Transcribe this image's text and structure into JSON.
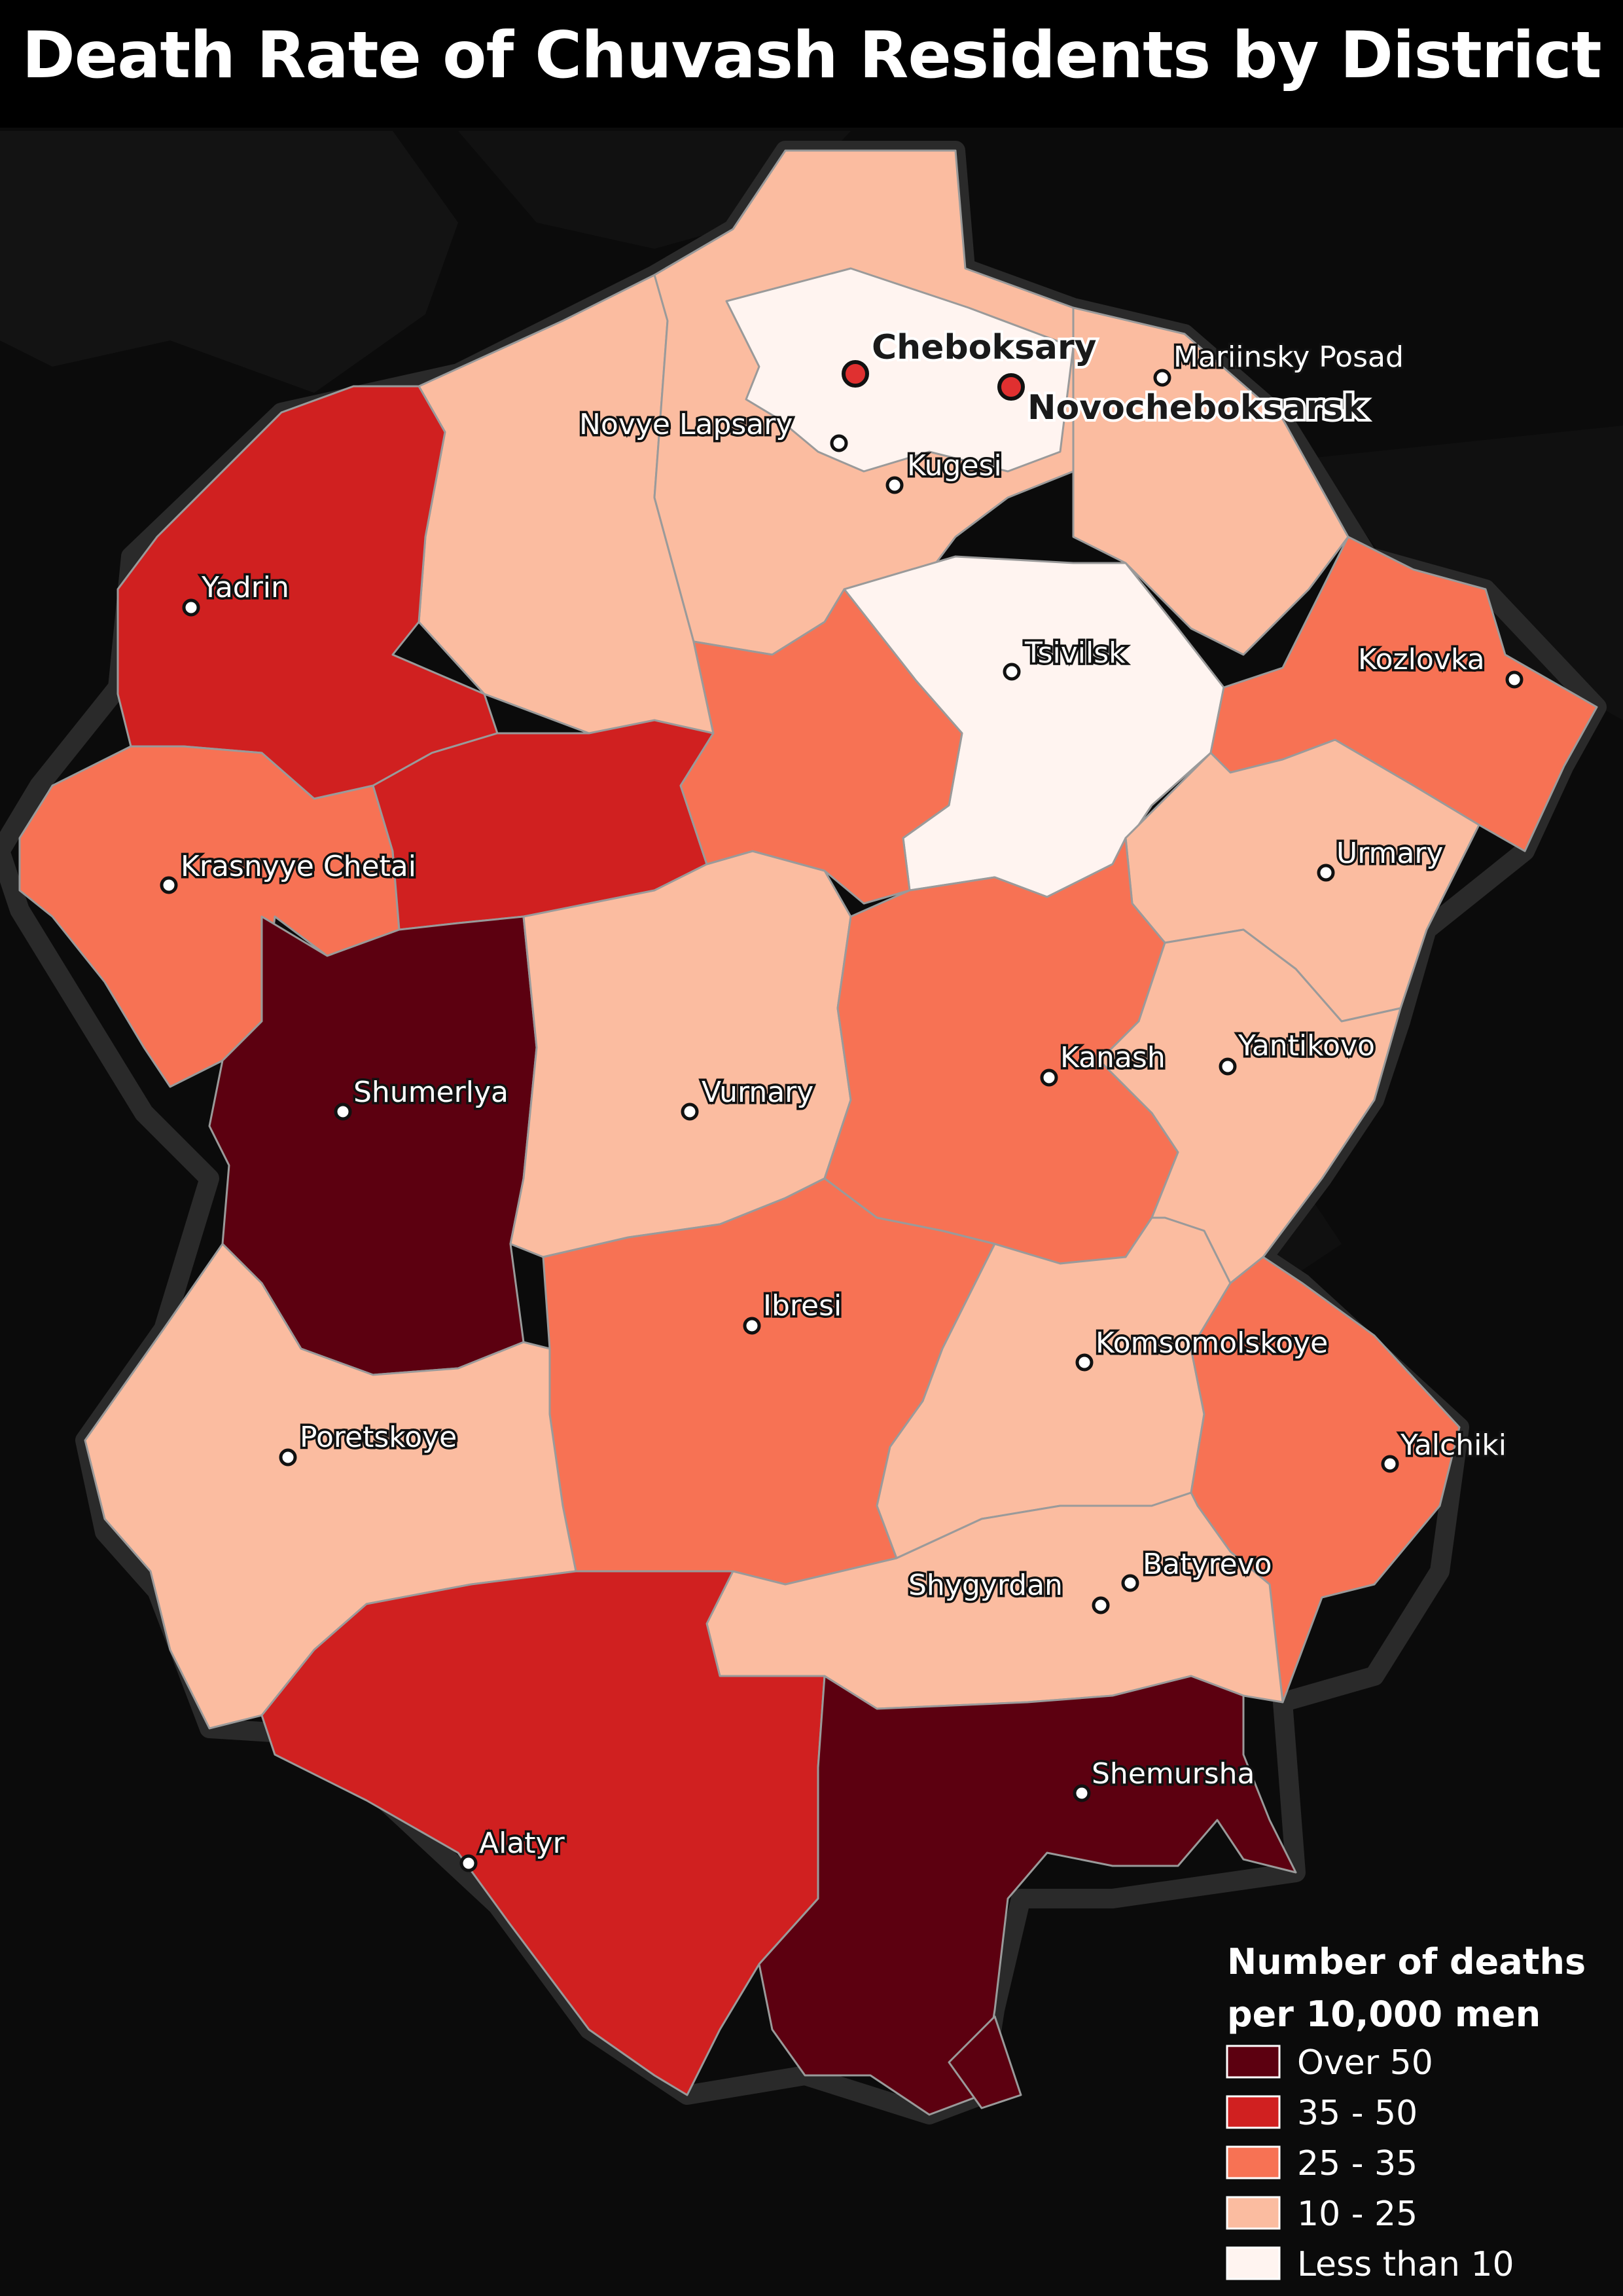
{
  "title": "Death Rate of Chuvash Residents by District",
  "colors": {
    "over_50": "#5c0010",
    "35_50": "#d02020",
    "25_35": "#f77254",
    "10_25": "#fbbca0",
    "less_10": "#fff4f0",
    "background": "#0b0b0b",
    "city_major": "#e03030"
  },
  "legend": {
    "title_line1": "Number of deaths",
    "title_line2": "per 10,000 men",
    "items": [
      {
        "label": "Over 50",
        "color": "#5c0010"
      },
      {
        "label": "35 - 50",
        "color": "#d02020"
      },
      {
        "label": "25 - 35",
        "color": "#f77254"
      },
      {
        "label": "10 - 25",
        "color": "#fbbca0"
      },
      {
        "label": "Less than 10",
        "color": "#fff4f0"
      }
    ]
  },
  "places": {
    "cheboksary": "Cheboksary",
    "novocheboksarsk": "Novocheboksarsk",
    "mariinsky_posad": "Mariinsky Posad",
    "novye_lapsary": "Novye Lapsary",
    "kugesi": "Kugesi",
    "yadrin": "Yadrin",
    "tsivilsk": "Tsivilsk",
    "kozlovka": "Kozlovka",
    "krasnyye_chetai": "Krasnyye Chetai",
    "urmary": "Urmary",
    "shumerlya": "Shumerlya",
    "vurnary": "Vurnary",
    "kanash": "Kanash",
    "yantikovo": "Yantikovo",
    "ibresi": "Ibresi",
    "komsomolskoye": "Komsomolskoye",
    "poretskoye": "Poretskoye",
    "yalchiki": "Yalchiki",
    "shygyrdan": "Shygyrdan",
    "batyrevo": "Batyrevo",
    "shemursha": "Shemursha",
    "alatyr": "Alatyr"
  }
}
